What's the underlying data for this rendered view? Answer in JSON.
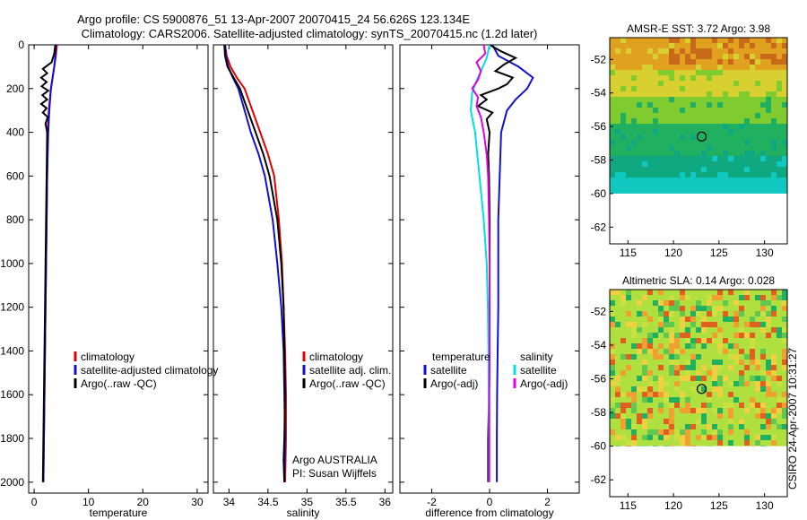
{
  "title_line1": "Argo profile: CS 5900876_51 13-Apr-2007 20070415_24 56.626S 123.134E",
  "title_line2": "Climatology: CARS2006. Satellite-adjusted climatology: synTS_20070415.nc (1.2d later)",
  "timestamp": "CSIRO 24-Apr-2007 10:31:27",
  "colors": {
    "red": "#e00000",
    "blue": "#1010d0",
    "black": "#000000",
    "cyan": "#00e0e0",
    "magenta": "#e000e0"
  },
  "chart_data": [
    {
      "type": "line",
      "id": "temperature",
      "xlabel": "temperature",
      "ylabel": "",
      "xlim": [
        -1,
        32
      ],
      "ylim": [
        2050,
        0
      ],
      "xticks": [
        0,
        10,
        20,
        30
      ],
      "yticks": [
        0,
        200,
        400,
        600,
        800,
        1000,
        1200,
        1400,
        1600,
        1800,
        2000
      ],
      "legend": [
        "climatology",
        "satellite-adjusted climatology",
        "Argo(..raw -QC)"
      ],
      "legend_colors": [
        "red",
        "blue",
        "black"
      ],
      "series": [
        {
          "name": "climatology",
          "color": "red",
          "points": [
            [
              4.2,
              0
            ],
            [
              4.0,
              50
            ],
            [
              3.7,
              100
            ],
            [
              3.1,
              200
            ],
            [
              2.7,
              300
            ],
            [
              2.5,
              400
            ],
            [
              2.4,
              600
            ],
            [
              2.3,
              800
            ],
            [
              2.2,
              1000
            ],
            [
              2.1,
              1200
            ],
            [
              2.0,
              1400
            ],
            [
              1.9,
              1600
            ],
            [
              1.8,
              1800
            ],
            [
              1.7,
              2000
            ]
          ]
        },
        {
          "name": "satellite-adjusted climatology",
          "color": "blue",
          "points": [
            [
              4.0,
              0
            ],
            [
              3.9,
              50
            ],
            [
              3.7,
              100
            ],
            [
              3.4,
              150
            ],
            [
              3.1,
              200
            ],
            [
              2.8,
              300
            ],
            [
              2.6,
              400
            ],
            [
              2.4,
              600
            ],
            [
              2.3,
              800
            ],
            [
              2.2,
              1000
            ],
            [
              2.1,
              1200
            ],
            [
              2.0,
              1400
            ],
            [
              1.9,
              1600
            ],
            [
              1.8,
              1800
            ],
            [
              1.7,
              2000
            ]
          ]
        },
        {
          "name": "Argo(..raw -QC)",
          "color": "black",
          "points": [
            [
              3.9,
              0
            ],
            [
              3.7,
              40
            ],
            [
              3.2,
              80
            ],
            [
              1.6,
              110
            ],
            [
              2.4,
              130
            ],
            [
              1.3,
              150
            ],
            [
              2.3,
              170
            ],
            [
              1.4,
              190
            ],
            [
              2.6,
              210
            ],
            [
              1.5,
              230
            ],
            [
              2.4,
              250
            ],
            [
              1.3,
              270
            ],
            [
              2.3,
              290
            ],
            [
              1.6,
              310
            ],
            [
              2.5,
              330
            ],
            [
              2.1,
              360
            ],
            [
              2.4,
              400
            ],
            [
              2.3,
              600
            ],
            [
              2.2,
              800
            ],
            [
              2.1,
              1000
            ],
            [
              2.0,
              1200
            ],
            [
              1.9,
              1400
            ],
            [
              1.8,
              1600
            ],
            [
              1.7,
              1800
            ],
            [
              1.6,
              2000
            ]
          ]
        }
      ]
    },
    {
      "type": "line",
      "id": "salinity",
      "xlabel": "salinity",
      "xlim": [
        33.8,
        36.1
      ],
      "ylim": [
        2050,
        0
      ],
      "xticks": [
        34,
        34.5,
        35,
        35.5,
        36
      ],
      "legend": [
        "climatology",
        "satellite adj. clim.",
        "Argo(..raw -QC)"
      ],
      "legend_colors": [
        "red",
        "blue",
        "black"
      ],
      "annotations": [
        "Argo AUSTRALIA",
        "PI: Susan Wijffels"
      ],
      "series": [
        {
          "name": "climatology",
          "color": "red",
          "points": [
            [
              33.95,
              0
            ],
            [
              33.97,
              50
            ],
            [
              34.02,
              100
            ],
            [
              34.1,
              150
            ],
            [
              34.2,
              200
            ],
            [
              34.3,
              300
            ],
            [
              34.4,
              400
            ],
            [
              34.5,
              500
            ],
            [
              34.58,
              600
            ],
            [
              34.64,
              800
            ],
            [
              34.68,
              1000
            ],
            [
              34.7,
              1200
            ],
            [
              34.72,
              1400
            ],
            [
              34.73,
              1600
            ],
            [
              34.73,
              1800
            ],
            [
              34.72,
              2000
            ]
          ]
        },
        {
          "name": "satellite adj. clim.",
          "color": "blue",
          "points": [
            [
              33.95,
              0
            ],
            [
              33.96,
              50
            ],
            [
              33.99,
              100
            ],
            [
              34.05,
              150
            ],
            [
              34.12,
              200
            ],
            [
              34.2,
              300
            ],
            [
              34.28,
              400
            ],
            [
              34.38,
              500
            ],
            [
              34.46,
              600
            ],
            [
              34.56,
              800
            ],
            [
              34.62,
              1000
            ],
            [
              34.67,
              1200
            ],
            [
              34.7,
              1400
            ],
            [
              34.71,
              1600
            ],
            [
              34.72,
              1800
            ],
            [
              34.71,
              2000
            ]
          ]
        },
        {
          "name": "Argo(..raw -QC)",
          "color": "black",
          "points": [
            [
              33.94,
              0
            ],
            [
              33.95,
              50
            ],
            [
              33.98,
              100
            ],
            [
              34.06,
              150
            ],
            [
              34.14,
              200
            ],
            [
              34.24,
              300
            ],
            [
              34.34,
              400
            ],
            [
              34.44,
              500
            ],
            [
              34.52,
              600
            ],
            [
              34.62,
              800
            ],
            [
              34.67,
              1000
            ],
            [
              34.7,
              1200
            ],
            [
              34.71,
              1400
            ],
            [
              34.72,
              1600
            ],
            [
              34.71,
              1800
            ],
            [
              34.7,
              1900
            ],
            [
              34.71,
              2000
            ]
          ]
        }
      ]
    },
    {
      "type": "line",
      "id": "difference",
      "xlabel": "difference from climatology",
      "xlim": [
        -3.1,
        3.1
      ],
      "ylim": [
        2050,
        0
      ],
      "xticks": [
        -2,
        0,
        2
      ],
      "legend_groups": [
        {
          "heading": "temperature",
          "items": [
            "satellite",
            "Argo(-adj)"
          ],
          "colors": [
            "blue",
            "black"
          ]
        },
        {
          "heading": "salinity",
          "items": [
            "satellite",
            "Argo(-adj)"
          ],
          "colors": [
            "cyan",
            "magenta"
          ]
        }
      ],
      "series": [
        {
          "name": "temperature satellite",
          "color": "blue",
          "points": [
            [
              0.1,
              0
            ],
            [
              0.3,
              50
            ],
            [
              1.0,
              100
            ],
            [
              1.5,
              150
            ],
            [
              1.3,
              200
            ],
            [
              0.9,
              250
            ],
            [
              0.6,
              300
            ],
            [
              0.4,
              400
            ],
            [
              0.35,
              600
            ],
            [
              0.3,
              800
            ],
            [
              0.3,
              1000
            ],
            [
              0.3,
              1200
            ],
            [
              0.28,
              1400
            ],
            [
              0.26,
              1600
            ],
            [
              0.25,
              1800
            ],
            [
              0.25,
              2000
            ]
          ]
        },
        {
          "name": "temperature Argo(-adj)",
          "color": "black",
          "points": [
            [
              0.0,
              0
            ],
            [
              0.4,
              30
            ],
            [
              0.9,
              60
            ],
            [
              0.5,
              90
            ],
            [
              0.2,
              120
            ],
            [
              0.8,
              150
            ],
            [
              0.6,
              180
            ],
            [
              0.3,
              200
            ],
            [
              -0.3,
              230
            ],
            [
              -0.1,
              250
            ],
            [
              -0.4,
              280
            ],
            [
              0.1,
              310
            ],
            [
              -0.1,
              340
            ],
            [
              0.0,
              400
            ],
            [
              -0.05,
              500
            ],
            [
              -0.02,
              600
            ],
            [
              0.0,
              800
            ],
            [
              0.0,
              1000
            ],
            [
              0.0,
              1200
            ],
            [
              0.0,
              1400
            ],
            [
              -0.02,
              1600
            ],
            [
              -0.05,
              1800
            ],
            [
              -0.05,
              2000
            ]
          ]
        },
        {
          "name": "salinity satellite",
          "color": "cyan",
          "points": [
            [
              0.0,
              0
            ],
            [
              -0.1,
              60
            ],
            [
              -0.3,
              120
            ],
            [
              -0.5,
              180
            ],
            [
              -0.6,
              220
            ],
            [
              -0.65,
              300
            ],
            [
              -0.5,
              400
            ],
            [
              -0.35,
              600
            ],
            [
              -0.2,
              800
            ],
            [
              -0.1,
              1000
            ],
            [
              -0.06,
              1200
            ],
            [
              -0.04,
              1400
            ],
            [
              -0.03,
              1600
            ],
            [
              -0.02,
              1800
            ],
            [
              -0.02,
              2000
            ]
          ]
        },
        {
          "name": "salinity Argo(-adj)",
          "color": "magenta",
          "points": [
            [
              -0.2,
              0
            ],
            [
              -0.15,
              40
            ],
            [
              -0.45,
              80
            ],
            [
              -0.3,
              120
            ],
            [
              -0.4,
              160
            ],
            [
              -0.6,
              200
            ],
            [
              -0.4,
              240
            ],
            [
              -0.45,
              280
            ],
            [
              -0.3,
              330
            ],
            [
              -0.2,
              400
            ],
            [
              -0.1,
              500
            ],
            [
              -0.05,
              600
            ],
            [
              -0.02,
              800
            ],
            [
              0.0,
              1000
            ],
            [
              0.0,
              1200
            ],
            [
              0.0,
              1400
            ],
            [
              -0.01,
              1600
            ],
            [
              -0.01,
              1800
            ],
            [
              -0.01,
              2000
            ]
          ]
        }
      ]
    },
    {
      "type": "heatmap",
      "id": "sst",
      "title": "AMSR-E SST: 3.72 Argo: 3.98",
      "xlim": [
        113,
        132.5
      ],
      "ylim": [
        -63,
        -50.7
      ],
      "xticks": [
        115,
        120,
        125,
        130
      ],
      "yticks": [
        -52,
        -54,
        -56,
        -58,
        -60,
        -62
      ],
      "data_south_limit": -60,
      "marker": [
        123.1,
        -56.6
      ],
      "color_bands": [
        {
          "lat_max": -50.7,
          "lat_min": -52.4,
          "color": "#e0a020"
        },
        {
          "lat_max": -52.4,
          "lat_min": -54.0,
          "color": "#d8d030"
        },
        {
          "lat_max": -54.0,
          "lat_min": -55.6,
          "color": "#80cc30"
        },
        {
          "lat_max": -55.6,
          "lat_min": -57.6,
          "color": "#20b060"
        },
        {
          "lat_max": -57.6,
          "lat_min": -59.0,
          "color": "#10a880"
        },
        {
          "lat_max": -59.0,
          "lat_min": -60.0,
          "color": "#10c8c0"
        }
      ]
    },
    {
      "type": "heatmap",
      "id": "sla",
      "title": "Altimetric SLA: 0.14 Argo: 0.028",
      "xlim": [
        113,
        132.5
      ],
      "ylim": [
        -63,
        -50.7
      ],
      "xticks": [
        115,
        120,
        125,
        130
      ],
      "yticks": [
        -52,
        -54,
        -56,
        -58,
        -60,
        -62
      ],
      "data_south_limit": -60,
      "marker": [
        123.1,
        -56.6
      ],
      "base_color": "#b0e040",
      "palette": [
        "#20b060",
        "#60c850",
        "#c8e040",
        "#f0d040",
        "#f0a030",
        "#e06020"
      ]
    }
  ]
}
